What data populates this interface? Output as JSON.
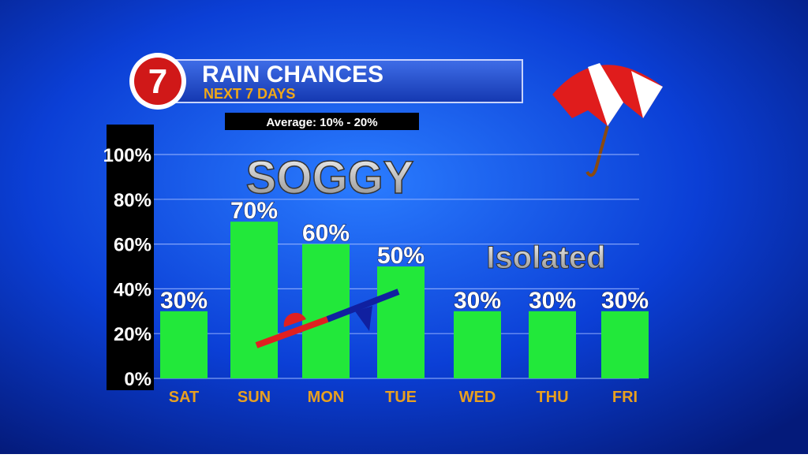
{
  "chart_data": {
    "type": "bar",
    "logo": "7",
    "title": "RAIN CHANCES",
    "subtitle": "NEXT 7 DAYS",
    "note": "Average: 10% - 20%",
    "annotations": [
      "SOGGY",
      "Isolated"
    ],
    "categories": [
      "SAT",
      "SUN",
      "MON",
      "TUE",
      "WED",
      "THU",
      "FRI"
    ],
    "values": [
      30,
      70,
      60,
      50,
      30,
      30,
      30
    ],
    "value_labels": [
      "30%",
      "70%",
      "60%",
      "50%",
      "30%",
      "30%",
      "30%"
    ],
    "color": "#22e83a",
    "ylim": [
      0,
      100
    ],
    "yticks": [
      {
        "value": 0,
        "label": "0%"
      },
      {
        "value": 20,
        "label": "20%"
      },
      {
        "value": 40,
        "label": "40%"
      },
      {
        "value": 60,
        "label": "60%"
      },
      {
        "value": 80,
        "label": "80%"
      },
      {
        "value": 100,
        "label": "100%"
      }
    ],
    "grid": true
  }
}
